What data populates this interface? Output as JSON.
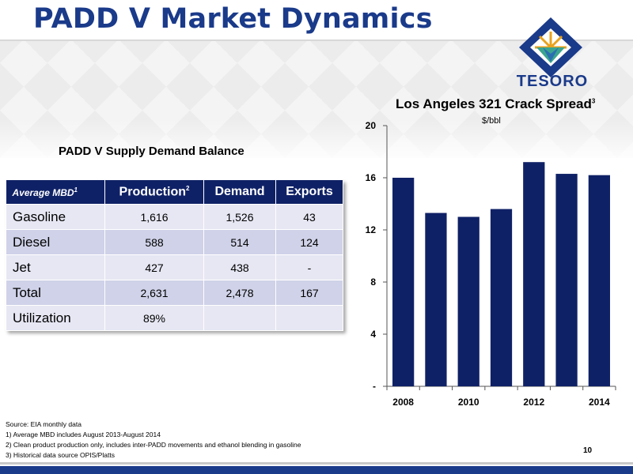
{
  "slide": {
    "title": "PADD V Market Dynamics",
    "page_number": "10"
  },
  "logo": {
    "text": "TESORO"
  },
  "table": {
    "title": "PADD V Supply Demand Balance",
    "header": {
      "col1": "Average MBD",
      "col1_sup": "1",
      "col2": "Production",
      "col2_sup": "2",
      "col3": "Demand",
      "col4": "Exports"
    },
    "rows": [
      {
        "label": "Gasoline",
        "production": "1,616",
        "demand": "1,526",
        "exports": "43"
      },
      {
        "label": "Diesel",
        "production": "588",
        "demand": "514",
        "exports": "124"
      },
      {
        "label": "Jet",
        "production": "427",
        "demand": "438",
        "exports": "-"
      },
      {
        "label": "Total",
        "production": "2,631",
        "demand": "2,478",
        "exports": "167"
      },
      {
        "label": "Utilization",
        "production": "89%",
        "demand": "",
        "exports": ""
      }
    ]
  },
  "notes": [
    "Source: EIA monthly data",
    "1) Average MBD includes August 2013-August 2014",
    "2) Clean product production only, includes inter-PADD movements and ethanol blending in gasoline",
    "3) Historical data source OPIS/Platts"
  ],
  "chart_data": {
    "type": "bar",
    "title": "Los Angeles 321 Crack Spread",
    "title_sup": "3",
    "ylabel": "$/bbl",
    "xlabel": "",
    "categories": [
      "2008",
      "2009",
      "2010",
      "2011",
      "2012",
      "2013",
      "2014"
    ],
    "x_tick_labels": [
      "2008",
      "",
      "2010",
      "",
      "2012",
      "",
      "2014"
    ],
    "values": [
      16.0,
      13.3,
      13.0,
      13.6,
      17.2,
      16.3,
      16.2
    ],
    "ylim": [
      0,
      20
    ],
    "y_ticks": [
      0,
      4,
      8,
      12,
      16,
      20
    ],
    "y_tick_labels": [
      "-",
      "4",
      "8",
      "12",
      "16",
      "20"
    ],
    "bar_color": "#0f2166",
    "grid": false,
    "legend": "none"
  },
  "colors": {
    "title": "#1a3a8a",
    "table_header": "#0f2166",
    "row_light": "#e6e7f3",
    "row_dark": "#cfd2e8",
    "footer": "#1a3a8a"
  }
}
